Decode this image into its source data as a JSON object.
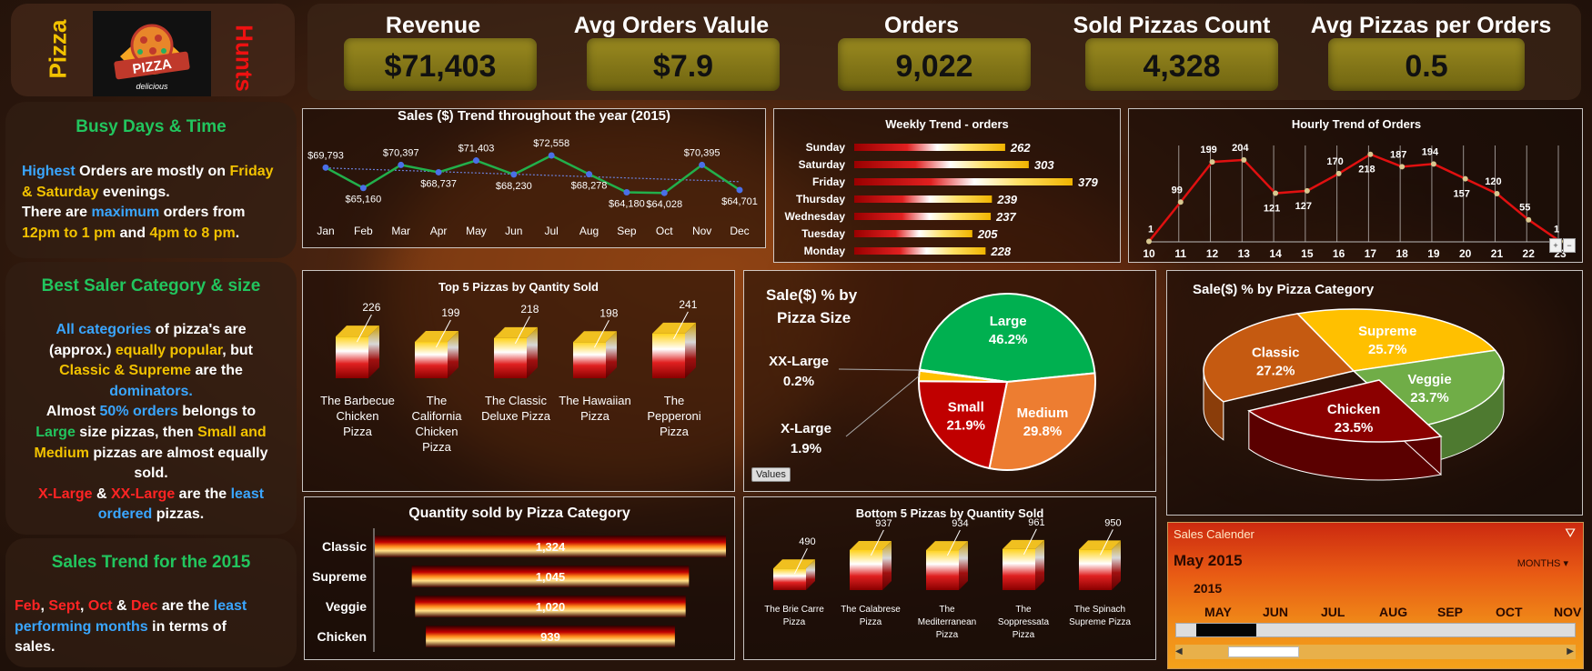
{
  "logo": {
    "left_text": "Pizza",
    "right_text": "Hunts",
    "badge_text": "PIZZA",
    "badge_sub": "delicious"
  },
  "kpis": [
    {
      "label": "Revenue",
      "value": "$71,403"
    },
    {
      "label": "Avg Orders Valule",
      "value": "$7.9"
    },
    {
      "label": "Orders",
      "value": "9,022"
    },
    {
      "label": "Sold Pizzas Count",
      "value": "4,328"
    },
    {
      "label": "Avg Pizzas per Orders",
      "value": "0.5"
    }
  ],
  "sidebar": {
    "busy": {
      "heading": "Busy Days & Time",
      "w_highest": "Highest",
      "t_orders_mostly_on": " Orders are mostly on ",
      "w_friday": "Friday",
      "w_saturday": "& Saturday",
      "t_evenings": " evenings.",
      "t_there_are": "There are ",
      "w_maximum": "maximum",
      "t_orders_from": " orders from",
      "w_time1": "12pm to 1 pm",
      "t_and": " and ",
      "w_time2": "4pm to 8 pm",
      "t_period": "."
    },
    "best": {
      "heading": "Best Saler Category & size",
      "w_all_categories": "All categories",
      "t_of_pizzas_are": " of pizza's are",
      "t_approx": "(approx.) ",
      "w_equally_popular": "equally popular",
      "t_but": ", but",
      "w_classic_supreme": "Classic & Supreme",
      "t_are_the": " are the",
      "w_dominators": "dominators.",
      "t_almost": "Almost ",
      "w_50_orders": "50% orders",
      "t_belongs_to": " belongs to",
      "w_large": "Large",
      "t_size_then": " size pizzas, then ",
      "w_small_and": "Small and",
      "w_medium": "Medium",
      "t_almost_equally": " pizzas are almost equally",
      "t_sold": "sold.",
      "w_xlarge": "X-Large",
      "t_amp": " & ",
      "w_xxlarge": "XX-Large",
      "t_are_the2": " are the ",
      "w_least": "least",
      "w_ordered": "ordered",
      "t_pizzas": " pizzas."
    },
    "trend": {
      "heading": "Sales Trend for the 2015",
      "w_feb": "Feb",
      "t_c1": ", ",
      "w_sept": "Sept",
      "t_c2": ", ",
      "w_oct": "Oct",
      "t_amp": " & ",
      "w_dec": "Dec",
      "t_are_the": " are the ",
      "w_least": "least",
      "w_performing": "performing months",
      "t_in_terms": " in terms of",
      "t_sales": "sales."
    }
  },
  "chart_data": [
    {
      "id": "monthly",
      "type": "line",
      "title": "Sales ($) Trend throughout the year (2015)",
      "categories": [
        "Jan",
        "Feb",
        "Mar",
        "Apr",
        "May",
        "Jun",
        "Jul",
        "Aug",
        "Sep",
        "Oct",
        "Nov",
        "Dec"
      ],
      "values": [
        69793,
        65160,
        70397,
        68737,
        71403,
        68230,
        72558,
        68278,
        64180,
        64028,
        70395,
        64701
      ],
      "labels": [
        "$69,793",
        "$65,160",
        "$70,397",
        "$68,737",
        "$71,403",
        "$68,230",
        "$72,558",
        "$68,278",
        "$64,180",
        "$64,028",
        "$70,395",
        "$64,701"
      ],
      "trendline": true
    },
    {
      "id": "weekly",
      "type": "bar",
      "title": "Weekly Trend - orders",
      "categories": [
        "Sunday",
        "Saturday",
        "Friday",
        "Thursday",
        "Wednesday",
        "Tuesday",
        "Monday"
      ],
      "values": [
        262,
        303,
        379,
        239,
        237,
        205,
        228
      ]
    },
    {
      "id": "hourly",
      "type": "line",
      "title": "Hourly Trend of Orders",
      "categories": [
        "10",
        "11",
        "12",
        "13",
        "14",
        "15",
        "16",
        "17",
        "18",
        "19",
        "20",
        "21",
        "22",
        "23"
      ],
      "values": [
        1,
        99,
        199,
        204,
        121,
        127,
        170,
        218,
        187,
        194,
        157,
        120,
        55,
        1
      ]
    },
    {
      "id": "top5",
      "type": "bar",
      "title": "Top 5 Pizzas by Qantity Sold",
      "categories": [
        "The Barbecue Chicken Pizza",
        "The California Chicken Pizza",
        "The Classic Deluxe Pizza",
        "The Hawaiian Pizza",
        "The Pepperoni Pizza"
      ],
      "values": [
        226,
        199,
        218,
        198,
        241
      ]
    },
    {
      "id": "size_pie",
      "type": "pie",
      "title": "Sale($) % by Pizza Size",
      "categories": [
        "Large",
        "Medium",
        "Small",
        "X-Large",
        "XX-Large"
      ],
      "values": [
        46.2,
        29.8,
        21.9,
        1.9,
        0.2
      ],
      "labels": [
        "46.2%",
        "29.8%",
        "21.9%",
        "1.9%",
        "0.2%"
      ],
      "colors": [
        "#00b050",
        "#ed7d31",
        "#c00000",
        "#ffc000",
        "#c0c0c0"
      ]
    },
    {
      "id": "category_pie",
      "type": "pie",
      "title": "Sale($) % by Pizza Category",
      "categories": [
        "Supreme",
        "Veggie",
        "Chicken",
        "Classic"
      ],
      "values": [
        25.7,
        23.7,
        23.5,
        27.2
      ],
      "labels": [
        "25.7%",
        "23.7%",
        "23.5%",
        "27.2%"
      ],
      "colors": [
        "#ffc000",
        "#70ad47",
        "#8b0000",
        "#c55a11"
      ]
    },
    {
      "id": "qty_category",
      "type": "bar",
      "title": "Quantity sold by Pizza Category",
      "categories": [
        "Classic",
        "Supreme",
        "Veggie",
        "Chicken"
      ],
      "values": [
        1324,
        1045,
        1020,
        939
      ],
      "labels": [
        "1,324",
        "1,045",
        "1,020",
        "939"
      ]
    },
    {
      "id": "bottom5",
      "type": "bar",
      "title": "Bottom 5 Pizzas by Quantity Sold",
      "categories": [
        "The Brie Carre Pizza",
        "The Calabrese Pizza",
        "The Mediterranean Pizza",
        "The Soppressata Pizza",
        "The Spinach Supreme Pizza"
      ],
      "values": [
        490,
        937,
        934,
        961,
        950
      ]
    }
  ],
  "size_pie_button": "Values",
  "calendar": {
    "title": "Sales Calender",
    "selected": "May 2015",
    "level": "MONTHS",
    "year": "2015",
    "months": [
      "MAY",
      "JUN",
      "JUL",
      "AUG",
      "SEP",
      "OCT",
      "NOV"
    ],
    "selected_index": 0
  },
  "zoom_buttons": {
    "plus": "+",
    "minus": "−"
  },
  "colors": {
    "accent_green": "#22c55e",
    "accent_yellow": "#f2c200",
    "accent_red": "#ff2424",
    "accent_blue": "#3aa6ff"
  }
}
